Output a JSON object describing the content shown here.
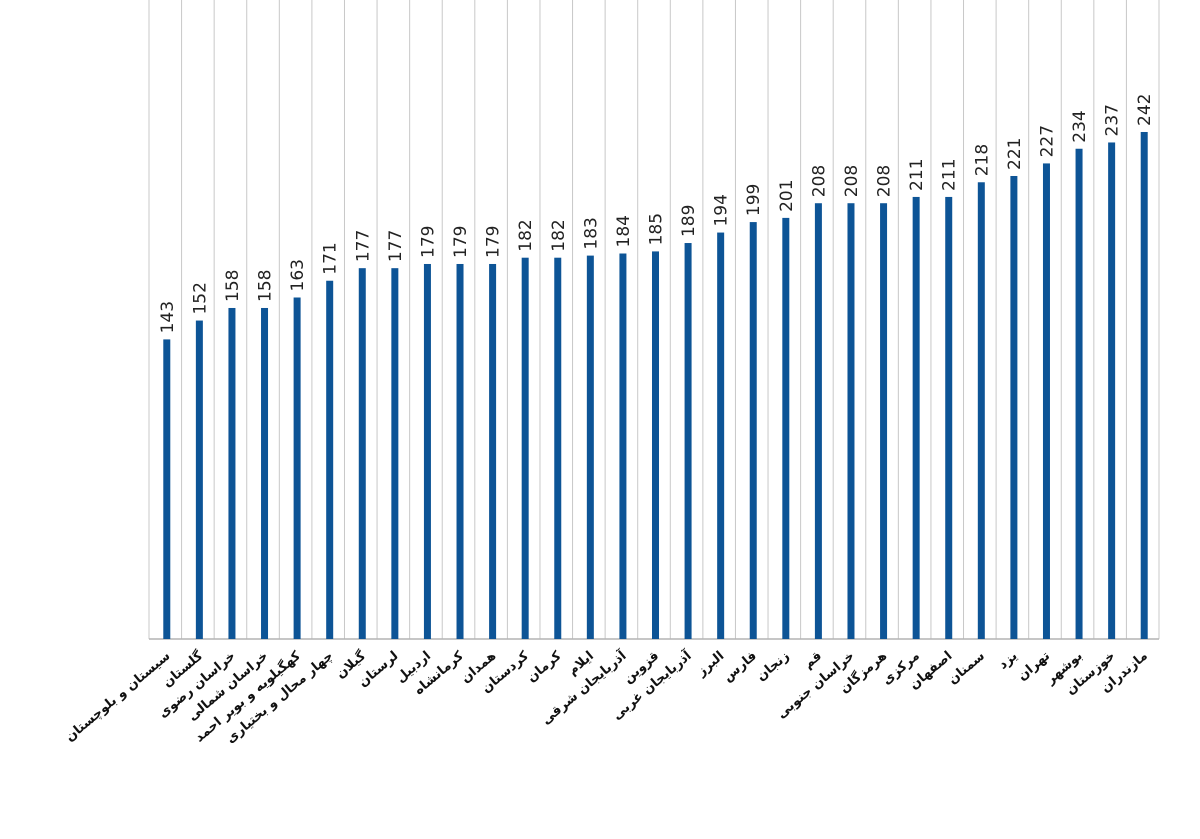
{
  "chart_data": {
    "type": "bar",
    "categories": [
      "سیستان و بلوچستان",
      "گلستان",
      "خراسان رضوی",
      "خراسان شمالی",
      "کهگیلویه و بویر احمد",
      "چهار محال و بختیاری",
      "گیلان",
      "لرستان",
      "اردبیل",
      "کرمانشاه",
      "همدان",
      "کردستان",
      "کرمان",
      "ایلام",
      "آذربایجان شرقی",
      "قزوین",
      "آذربایجان غربی",
      "البرز",
      "فارس",
      "زنجان",
      "قم",
      "خراسان جنوبی",
      "هرمزگان",
      "مرکزی",
      "اصفهان",
      "سمنان",
      "یزد",
      "تهران",
      "بوشهر",
      "خوزستان",
      "مازندران"
    ],
    "values": [
      143,
      152,
      158,
      158,
      163,
      171,
      177,
      177,
      179,
      179,
      179,
      182,
      182,
      183,
      184,
      185,
      189,
      194,
      199,
      201,
      208,
      208,
      208,
      211,
      211,
      218,
      221,
      227,
      234,
      237,
      242
    ],
    "value_labels": [
      "143",
      "152",
      "158",
      "158",
      "163",
      "171",
      "177",
      "177",
      "179",
      "179",
      "179",
      "182",
      "182",
      "183",
      "184",
      "185",
      "189",
      "194",
      "199",
      "201",
      "208",
      "208",
      "208",
      "211",
      "211",
      "218",
      "221",
      "227",
      "234",
      "237",
      "242"
    ],
    "ylim": [
      0,
      305
    ],
    "grid": "vertical",
    "legend": "none",
    "bar_color": "#0d5496",
    "grid_color": "#c8c8c8",
    "axis_color": "#b4b4b4"
  }
}
